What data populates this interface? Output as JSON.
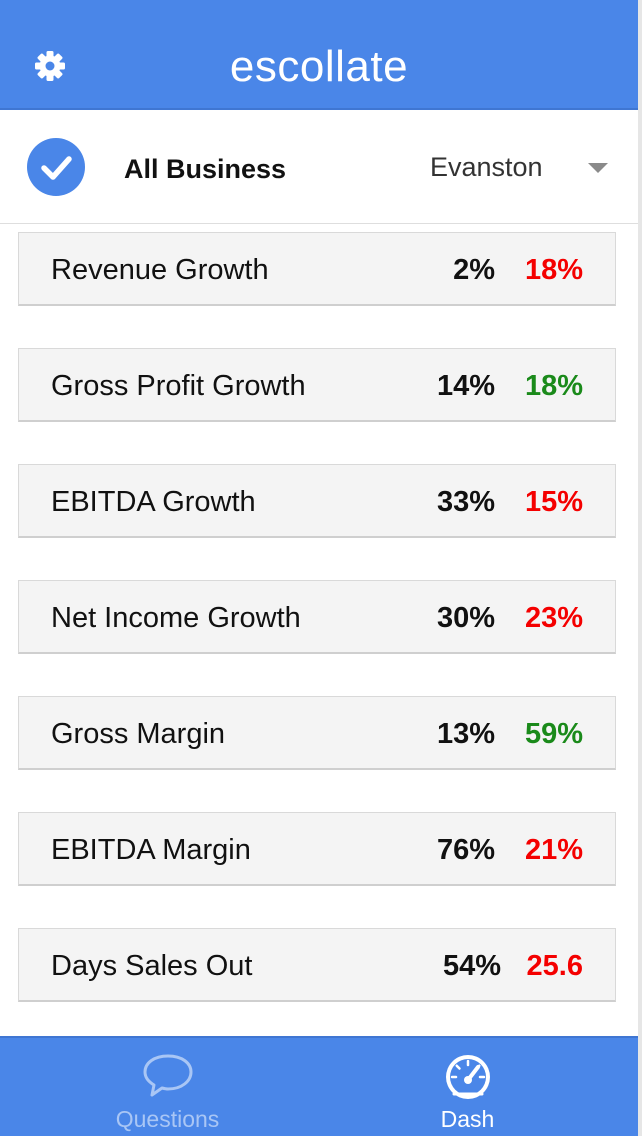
{
  "header": {
    "title": "escollate",
    "settings_icon": "gear-icon"
  },
  "filters": {
    "all_business_checked": true,
    "all_business_label": "All Business",
    "location": "Evanston"
  },
  "metrics": [
    {
      "label": "Revenue Growth",
      "value1": "2%",
      "value2": "18%",
      "value2_color": "#f40000"
    },
    {
      "label": "Gross Profit Growth",
      "value1": "14%",
      "value2": "18%",
      "value2_color": "#1a8a1a"
    },
    {
      "label": "EBITDA Growth",
      "value1": "33%",
      "value2": "15%",
      "value2_color": "#f40000"
    },
    {
      "label": "Net Income Growth",
      "value1": "30%",
      "value2": "23%",
      "value2_color": "#f40000"
    },
    {
      "label": "Gross Margin",
      "value1": "13%",
      "value2": "59%",
      "value2_color": "#1a8a1a"
    },
    {
      "label": "EBITDA Margin",
      "value1": "76%",
      "value2": "21%",
      "value2_color": "#f40000"
    },
    {
      "label": "Days Sales Out",
      "value1": "54%",
      "value2": "25.6",
      "value2_color": "#f40000"
    }
  ],
  "tabs": [
    {
      "label": "Questions",
      "icon": "speech-bubble-icon",
      "active": false
    },
    {
      "label": "Dash",
      "icon": "speedometer-icon",
      "active": true
    }
  ],
  "colors": {
    "brand": "#4a86e8",
    "negative": "#f40000",
    "positive": "#1a8a1a"
  }
}
